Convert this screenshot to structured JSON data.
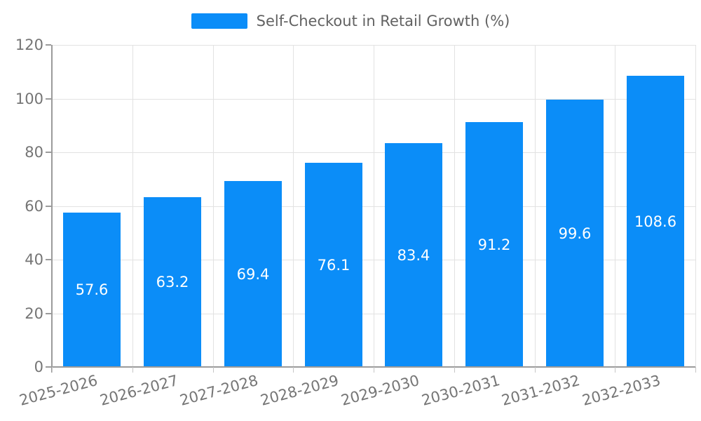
{
  "colors": {
    "bar": "#0B8DF8",
    "axis": "#9B9B9B",
    "grid": "#E2E2E2",
    "tick_text": "#757575",
    "legend_text": "#626262",
    "bar_label_text": "#FFFFFF",
    "background": "#FFFFFF"
  },
  "chart_data": {
    "type": "bar",
    "title": "",
    "legend": [
      "Self-Checkout in Retail Growth (%)"
    ],
    "legend_position": "top-center",
    "categories": [
      "2025-2026",
      "2026-2027",
      "2027-2028",
      "2028-2029",
      "2029-2030",
      "2030-2031",
      "2031-2032",
      "2032-2033"
    ],
    "series": [
      {
        "name": "Self-Checkout in Retail Growth (%)",
        "values": [
          57.6,
          63.2,
          69.4,
          76.1,
          83.4,
          91.2,
          99.6,
          108.6
        ]
      }
    ],
    "value_labels": [
      "57.6",
      "63.2",
      "69.4",
      "76.1",
      "83.4",
      "91.2",
      "99.6",
      "108.6"
    ],
    "value_label_position": "inside-center",
    "xlabel": "",
    "ylabel": "",
    "ylim": [
      0,
      120
    ],
    "yticks": [
      0,
      20,
      40,
      60,
      80,
      100,
      120
    ],
    "ytick_labels": [
      "0",
      "20",
      "40",
      "60",
      "80",
      "100",
      "120"
    ],
    "grid": true,
    "x_label_rotation_deg": -15
  }
}
